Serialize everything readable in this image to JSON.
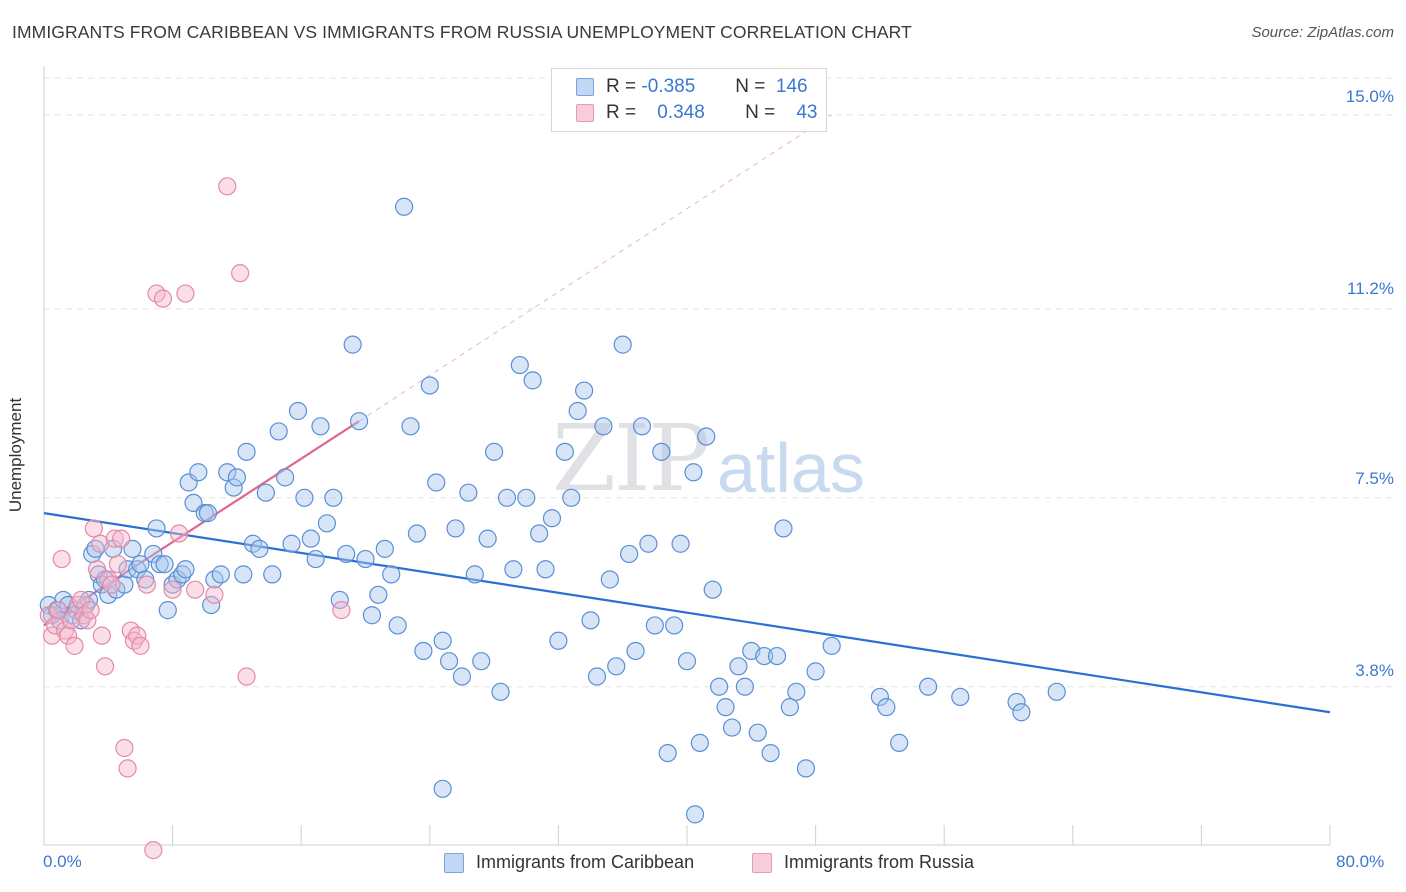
{
  "title": "IMMIGRANTS FROM CARIBBEAN VS IMMIGRANTS FROM RUSSIA UNEMPLOYMENT CORRELATION CHART",
  "source": "Source: ZipAtlas.com",
  "watermark": {
    "zip": "ZIP",
    "atlas": "atlas"
  },
  "legend_top": {
    "rows": [
      {
        "r_label": "R =",
        "r_value": "-0.385",
        "n_label": "N =",
        "n_value": "146"
      },
      {
        "r_label": "R =",
        "r_value": "0.348",
        "n_label": "N =",
        "n_value": "43"
      }
    ]
  },
  "legend_bottom": {
    "items": [
      "Immigrants from Caribbean",
      "Immigrants from Russia"
    ]
  },
  "colors": {
    "blue_fill": "#a8c6ee",
    "blue_stroke": "#5a8fd6",
    "blue_line": "#2a6fd4",
    "pink_fill": "#f5b8cb",
    "pink_stroke": "#e58aa7",
    "pink_line": "#e0658f",
    "grid": "#e3e3e3",
    "tick_text": "#3b78d0"
  },
  "chart_data": {
    "type": "scatter",
    "title": "IMMIGRANTS FROM CARIBBEAN VS IMMIGRANTS FROM RUSSIA UNEMPLOYMENT CORRELATION CHART",
    "xlabel": "",
    "ylabel": "Unemployment",
    "xlim": [
      0,
      80
    ],
    "ylim": [
      0.7,
      15.8
    ],
    "x_tick_labels": [
      "0.0%",
      "80.0%"
    ],
    "y_ticks": [
      3.8,
      7.5,
      11.2,
      15.0
    ],
    "y_tick_labels": [
      "3.8%",
      "7.5%",
      "11.2%",
      "15.0%"
    ],
    "grid": true,
    "legend": "top-center and bottom",
    "series": [
      {
        "name": "Immigrants from Caribbean",
        "color": "#a8c6ee",
        "trend": {
          "x": [
            0,
            80
          ],
          "y": [
            7.2,
            3.3
          ]
        },
        "points": [
          [
            0.3,
            5.4
          ],
          [
            0.5,
            5.2
          ],
          [
            0.8,
            5.3
          ],
          [
            1.0,
            5.1
          ],
          [
            1.2,
            5.5
          ],
          [
            1.5,
            5.4
          ],
          [
            1.8,
            5.2
          ],
          [
            2.0,
            5.3
          ],
          [
            2.3,
            5.1
          ],
          [
            2.6,
            5.4
          ],
          [
            2.8,
            5.5
          ],
          [
            3.0,
            6.4
          ],
          [
            3.2,
            6.5
          ],
          [
            3.4,
            6.0
          ],
          [
            3.6,
            5.8
          ],
          [
            3.8,
            5.9
          ],
          [
            4.0,
            5.6
          ],
          [
            4.3,
            6.5
          ],
          [
            4.5,
            5.7
          ],
          [
            5.0,
            5.8
          ],
          [
            5.2,
            6.1
          ],
          [
            5.5,
            6.5
          ],
          [
            5.8,
            6.1
          ],
          [
            6.0,
            6.2
          ],
          [
            6.3,
            5.9
          ],
          [
            6.8,
            6.4
          ],
          [
            7.0,
            6.9
          ],
          [
            7.2,
            6.2
          ],
          [
            7.5,
            6.2
          ],
          [
            7.7,
            5.3
          ],
          [
            8.0,
            5.8
          ],
          [
            8.3,
            5.9
          ],
          [
            8.6,
            6.0
          ],
          [
            8.8,
            6.1
          ],
          [
            9.0,
            7.8
          ],
          [
            9.3,
            7.4
          ],
          [
            9.6,
            8.0
          ],
          [
            10.0,
            7.2
          ],
          [
            10.2,
            7.2
          ],
          [
            10.4,
            5.4
          ],
          [
            10.6,
            5.9
          ],
          [
            11.0,
            6.0
          ],
          [
            11.4,
            8.0
          ],
          [
            11.8,
            7.7
          ],
          [
            12.0,
            7.9
          ],
          [
            12.4,
            6.0
          ],
          [
            12.6,
            8.4
          ],
          [
            13.0,
            6.6
          ],
          [
            13.4,
            6.5
          ],
          [
            13.8,
            7.6
          ],
          [
            14.2,
            6.0
          ],
          [
            14.6,
            8.8
          ],
          [
            15.0,
            7.9
          ],
          [
            15.4,
            6.6
          ],
          [
            15.8,
            9.2
          ],
          [
            16.2,
            7.5
          ],
          [
            16.6,
            6.7
          ],
          [
            16.9,
            6.3
          ],
          [
            17.2,
            8.9
          ],
          [
            17.6,
            7.0
          ],
          [
            18.0,
            7.5
          ],
          [
            18.4,
            5.5
          ],
          [
            18.8,
            6.4
          ],
          [
            19.2,
            10.5
          ],
          [
            19.6,
            9.0
          ],
          [
            20.0,
            6.3
          ],
          [
            20.4,
            5.2
          ],
          [
            20.8,
            5.6
          ],
          [
            21.2,
            6.5
          ],
          [
            21.6,
            6.0
          ],
          [
            22.0,
            5.0
          ],
          [
            22.4,
            13.2
          ],
          [
            22.8,
            8.9
          ],
          [
            23.2,
            6.8
          ],
          [
            23.6,
            4.5
          ],
          [
            24.0,
            9.7
          ],
          [
            24.4,
            7.8
          ],
          [
            24.8,
            4.7
          ],
          [
            25.2,
            4.3
          ],
          [
            25.6,
            6.9
          ],
          [
            26.0,
            4.0
          ],
          [
            26.4,
            7.6
          ],
          [
            26.8,
            6.0
          ],
          [
            27.2,
            4.3
          ],
          [
            27.6,
            6.7
          ],
          [
            28.0,
            8.4
          ],
          [
            28.4,
            3.7
          ],
          [
            28.8,
            7.5
          ],
          [
            29.2,
            6.1
          ],
          [
            29.6,
            10.1
          ],
          [
            30.0,
            7.5
          ],
          [
            30.4,
            9.8
          ],
          [
            30.8,
            6.8
          ],
          [
            31.2,
            6.1
          ],
          [
            31.6,
            7.1
          ],
          [
            32.0,
            4.7
          ],
          [
            32.4,
            8.4
          ],
          [
            32.8,
            7.5
          ],
          [
            33.2,
            9.2
          ],
          [
            33.6,
            9.6
          ],
          [
            34.0,
            5.1
          ],
          [
            34.4,
            4.0
          ],
          [
            34.8,
            8.9
          ],
          [
            35.2,
            5.9
          ],
          [
            35.6,
            4.2
          ],
          [
            36.0,
            10.5
          ],
          [
            36.4,
            6.4
          ],
          [
            36.8,
            4.5
          ],
          [
            37.2,
            8.9
          ],
          [
            37.6,
            6.6
          ],
          [
            38.0,
            5.0
          ],
          [
            38.4,
            8.4
          ],
          [
            38.8,
            2.5
          ],
          [
            39.2,
            5.0
          ],
          [
            39.6,
            6.6
          ],
          [
            40.0,
            4.3
          ],
          [
            40.4,
            8.0
          ],
          [
            40.8,
            2.7
          ],
          [
            41.2,
            8.7
          ],
          [
            41.6,
            5.7
          ],
          [
            42.0,
            3.8
          ],
          [
            42.4,
            3.4
          ],
          [
            42.8,
            3.0
          ],
          [
            43.2,
            4.2
          ],
          [
            43.6,
            3.8
          ],
          [
            44.0,
            4.5
          ],
          [
            44.4,
            2.9
          ],
          [
            44.8,
            4.4
          ],
          [
            45.2,
            2.5
          ],
          [
            45.6,
            4.4
          ],
          [
            46.0,
            6.9
          ],
          [
            46.4,
            3.4
          ],
          [
            46.8,
            3.7
          ],
          [
            47.4,
            2.2
          ],
          [
            48.0,
            4.1
          ],
          [
            49.0,
            4.6
          ],
          [
            52.0,
            3.6
          ],
          [
            52.4,
            3.4
          ],
          [
            53.2,
            2.7
          ],
          [
            55.0,
            3.8
          ],
          [
            57.0,
            3.6
          ],
          [
            60.5,
            3.5
          ],
          [
            60.8,
            3.3
          ],
          [
            63.0,
            3.7
          ],
          [
            24.8,
            1.8
          ],
          [
            40.5,
            1.3
          ]
        ]
      },
      {
        "name": "Immigrants from Russia",
        "color": "#f5b8cb",
        "trend": {
          "x": [
            0,
            19.6
          ],
          "y": [
            5.0,
            9.0
          ]
        },
        "points": [
          [
            0.3,
            5.2
          ],
          [
            0.5,
            4.8
          ],
          [
            0.7,
            5.0
          ],
          [
            0.9,
            5.3
          ],
          [
            1.1,
            6.3
          ],
          [
            1.3,
            4.9
          ],
          [
            1.5,
            4.8
          ],
          [
            1.7,
            5.1
          ],
          [
            1.9,
            4.6
          ],
          [
            2.1,
            5.4
          ],
          [
            2.3,
            5.5
          ],
          [
            2.5,
            5.2
          ],
          [
            2.7,
            5.1
          ],
          [
            2.9,
            5.3
          ],
          [
            3.1,
            6.9
          ],
          [
            3.3,
            6.1
          ],
          [
            3.5,
            6.6
          ],
          [
            3.6,
            4.8
          ],
          [
            3.8,
            4.2
          ],
          [
            4.0,
            5.9
          ],
          [
            4.2,
            5.8
          ],
          [
            4.4,
            6.7
          ],
          [
            4.6,
            6.2
          ],
          [
            4.8,
            6.7
          ],
          [
            5.0,
            2.6
          ],
          [
            5.2,
            2.2
          ],
          [
            5.4,
            4.9
          ],
          [
            5.6,
            4.7
          ],
          [
            5.8,
            4.8
          ],
          [
            6.0,
            4.6
          ],
          [
            6.4,
            5.8
          ],
          [
            6.8,
            0.6
          ],
          [
            7.0,
            11.5
          ],
          [
            7.4,
            11.4
          ],
          [
            8.0,
            5.7
          ],
          [
            8.4,
            6.8
          ],
          [
            8.8,
            11.5
          ],
          [
            9.4,
            5.7
          ],
          [
            10.6,
            5.6
          ],
          [
            11.4,
            13.6
          ],
          [
            12.2,
            11.9
          ],
          [
            12.6,
            4.0
          ],
          [
            18.5,
            5.3
          ]
        ]
      }
    ]
  }
}
